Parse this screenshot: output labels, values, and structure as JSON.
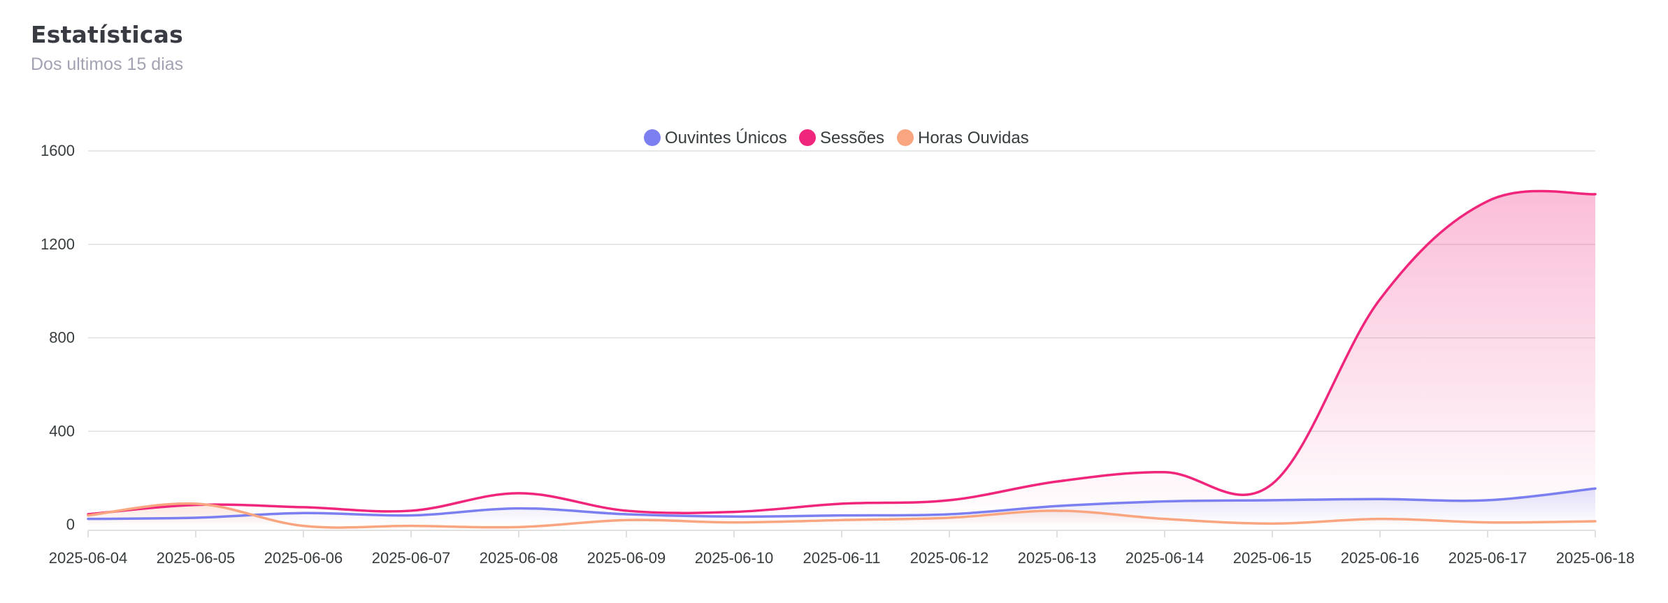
{
  "header": {
    "title": "Estatísticas",
    "subtitle": "Dos ultimos 15 dias"
  },
  "chart_data": {
    "type": "area",
    "title": "",
    "xlabel": "",
    "ylabel": "",
    "categories": [
      "2025-06-04",
      "2025-06-05",
      "2025-06-06",
      "2025-06-07",
      "2025-06-08",
      "2025-06-09",
      "2025-06-10",
      "2025-06-11",
      "2025-06-12",
      "2025-06-13",
      "2025-06-14",
      "2025-06-15",
      "2025-06-16",
      "2025-06-17",
      "2025-06-18"
    ],
    "ylim": [
      0,
      1600
    ],
    "yticks": [
      "0",
      "400",
      "800",
      "1200",
      "1600"
    ],
    "grid": true,
    "legend_position": "top-center",
    "series": [
      {
        "name": "Ouvintes Únicos",
        "color": "#7b7ff0",
        "values": [
          25,
          30,
          50,
          40,
          70,
          45,
          35,
          40,
          45,
          80,
          100,
          105,
          110,
          105,
          155
        ]
      },
      {
        "name": "Sessões",
        "color": "#f0267c",
        "values": [
          45,
          85,
          75,
          60,
          135,
          60,
          55,
          90,
          105,
          185,
          225,
          175,
          965,
          1385,
          1415
        ]
      },
      {
        "name": "Horas Ouvidas",
        "color": "#f9a57f",
        "values": [
          40,
          90,
          -5,
          -5,
          -10,
          20,
          10,
          20,
          30,
          60,
          25,
          5,
          25,
          10,
          15
        ]
      }
    ]
  }
}
